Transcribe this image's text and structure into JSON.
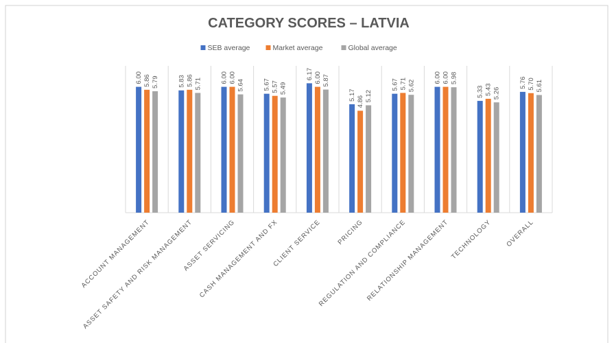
{
  "chart_data": {
    "type": "bar",
    "title": "CATEGORY SCORES – LATVIA",
    "categories": [
      "ACCOUNT MANAGEMENT",
      "ASSET SAFETY AND RISK MANAGEMENT",
      "ASSET SERVICING",
      "CASH MANAGEMENT AND FX",
      "CLIENT SERVICE",
      "PRICING",
      "REGULATION AND COMPLIANCE",
      "RELATIONSHIP MANAGEMENT",
      "TECHNOLOGY",
      "OVERALL"
    ],
    "series": [
      {
        "name": "SEB average",
        "color": "#4472c4",
        "values": [
          6,
          5.83,
          6,
          5.67,
          6.17,
          5.17,
          5.67,
          6,
          5.33,
          5.76
        ],
        "value_labels": [
          "6.00",
          "5.83",
          "6.00",
          "5.67",
          "6.17",
          "5.17",
          "5.67",
          "6.00",
          "5.33",
          "5.76"
        ]
      },
      {
        "name": "Market average",
        "color": "#ed7d31",
        "values": [
          5.86,
          5.86,
          6,
          5.57,
          6,
          4.86,
          5.71,
          6,
          5.43,
          5.7
        ],
        "value_labels": [
          "5.86",
          "5.86",
          "6.00",
          "5.57",
          "6.00",
          "4.86",
          "5.71",
          "6.00",
          "5.43",
          "5.70"
        ]
      },
      {
        "name": "Global average",
        "color": "#a5a5a5",
        "values": [
          5.79,
          5.71,
          5.64,
          5.49,
          5.87,
          5.12,
          5.62,
          5.98,
          5.26,
          5.61
        ],
        "value_labels": [
          "5.79",
          "5.71",
          "5.64",
          "5.49",
          "5.87",
          "5.12",
          "5.62",
          "5.98",
          "5.26",
          "5.61"
        ]
      }
    ],
    "ylim": [
      0,
      7
    ],
    "legend": "top"
  }
}
